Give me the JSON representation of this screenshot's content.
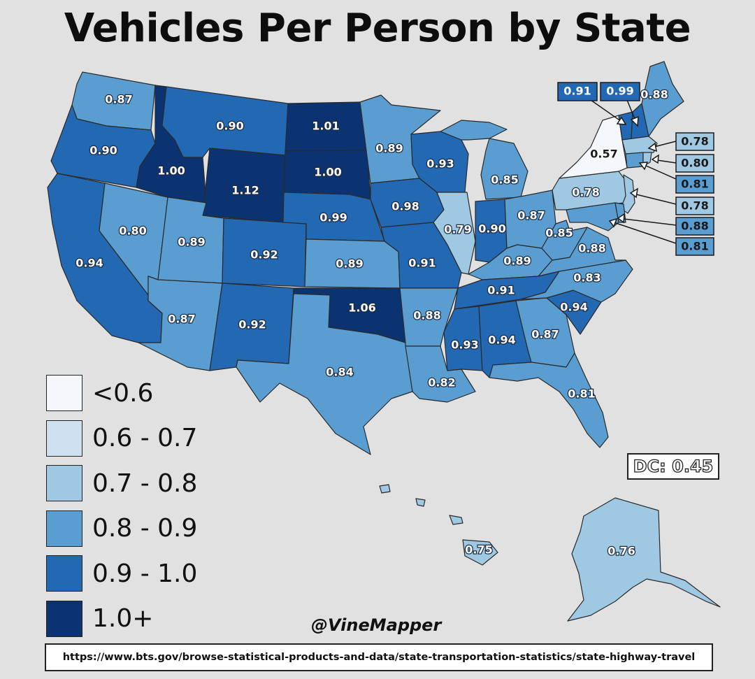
{
  "title": "Vehicles Per Person by State",
  "credit": "@VineMapper",
  "source_url": "https://www.bts.gov/browse-statistical-products-and-data/state-transportation-statistics/state-highway-travel",
  "dc_label": "DC: 0.45",
  "colors": {
    "lt06": "#f4f8fd",
    "c06_07": "#cfe0f1",
    "c07_08": "#9fc8e3",
    "c08_09": "#5a9dd0",
    "c09_10": "#2268b3",
    "c10p": "#0c3371",
    "background": "#e1e1e1"
  },
  "legend": [
    {
      "label": "<0.6",
      "color": "#f4f8fd"
    },
    {
      "label": "0.6 - 0.7",
      "color": "#cfe0f1"
    },
    {
      "label": "0.7 - 0.8",
      "color": "#9fc8e3"
    },
    {
      "label": "0.8 - 0.9",
      "color": "#5a9dd0"
    },
    {
      "label": "0.9 - 1.0",
      "color": "#2268b3"
    },
    {
      "label": "1.0+",
      "color": "#0c3371"
    }
  ],
  "states": {
    "WA": "0.87",
    "OR": "0.90",
    "CA": "0.94",
    "ID": "1.00",
    "NV": "0.80",
    "MT": "0.90",
    "WY": "1.12",
    "UT": "0.89",
    "AZ": "0.87",
    "CO": "0.92",
    "NM": "0.92",
    "ND": "1.01",
    "SD": "1.00",
    "NE": "0.99",
    "KS": "0.89",
    "OK": "1.06",
    "TX": "0.84",
    "MN": "0.89",
    "IA": "0.98",
    "MO": "0.91",
    "AR": "0.88",
    "LA": "0.82",
    "WI": "0.93",
    "IL": "0.79",
    "MI": "0.85",
    "IN": "0.90",
    "OH": "0.87",
    "KY": "0.89",
    "TN": "0.91",
    "MS": "0.93",
    "AL": "0.94",
    "GA": "0.87",
    "FL": "0.81",
    "SC": "0.94",
    "NC": "0.83",
    "VA": "0.88",
    "WV": "0.85",
    "PA": "0.78",
    "NY": "0.57",
    "ME": "0.88",
    "AK": "0.76",
    "HI": "0.75"
  },
  "callouts": {
    "VT": "0.91",
    "NH": "0.99",
    "MA": "0.78",
    "RI": "0.80",
    "CT": "0.81",
    "NJ": "0.78",
    "DE": "0.88",
    "MD": "0.81"
  }
}
